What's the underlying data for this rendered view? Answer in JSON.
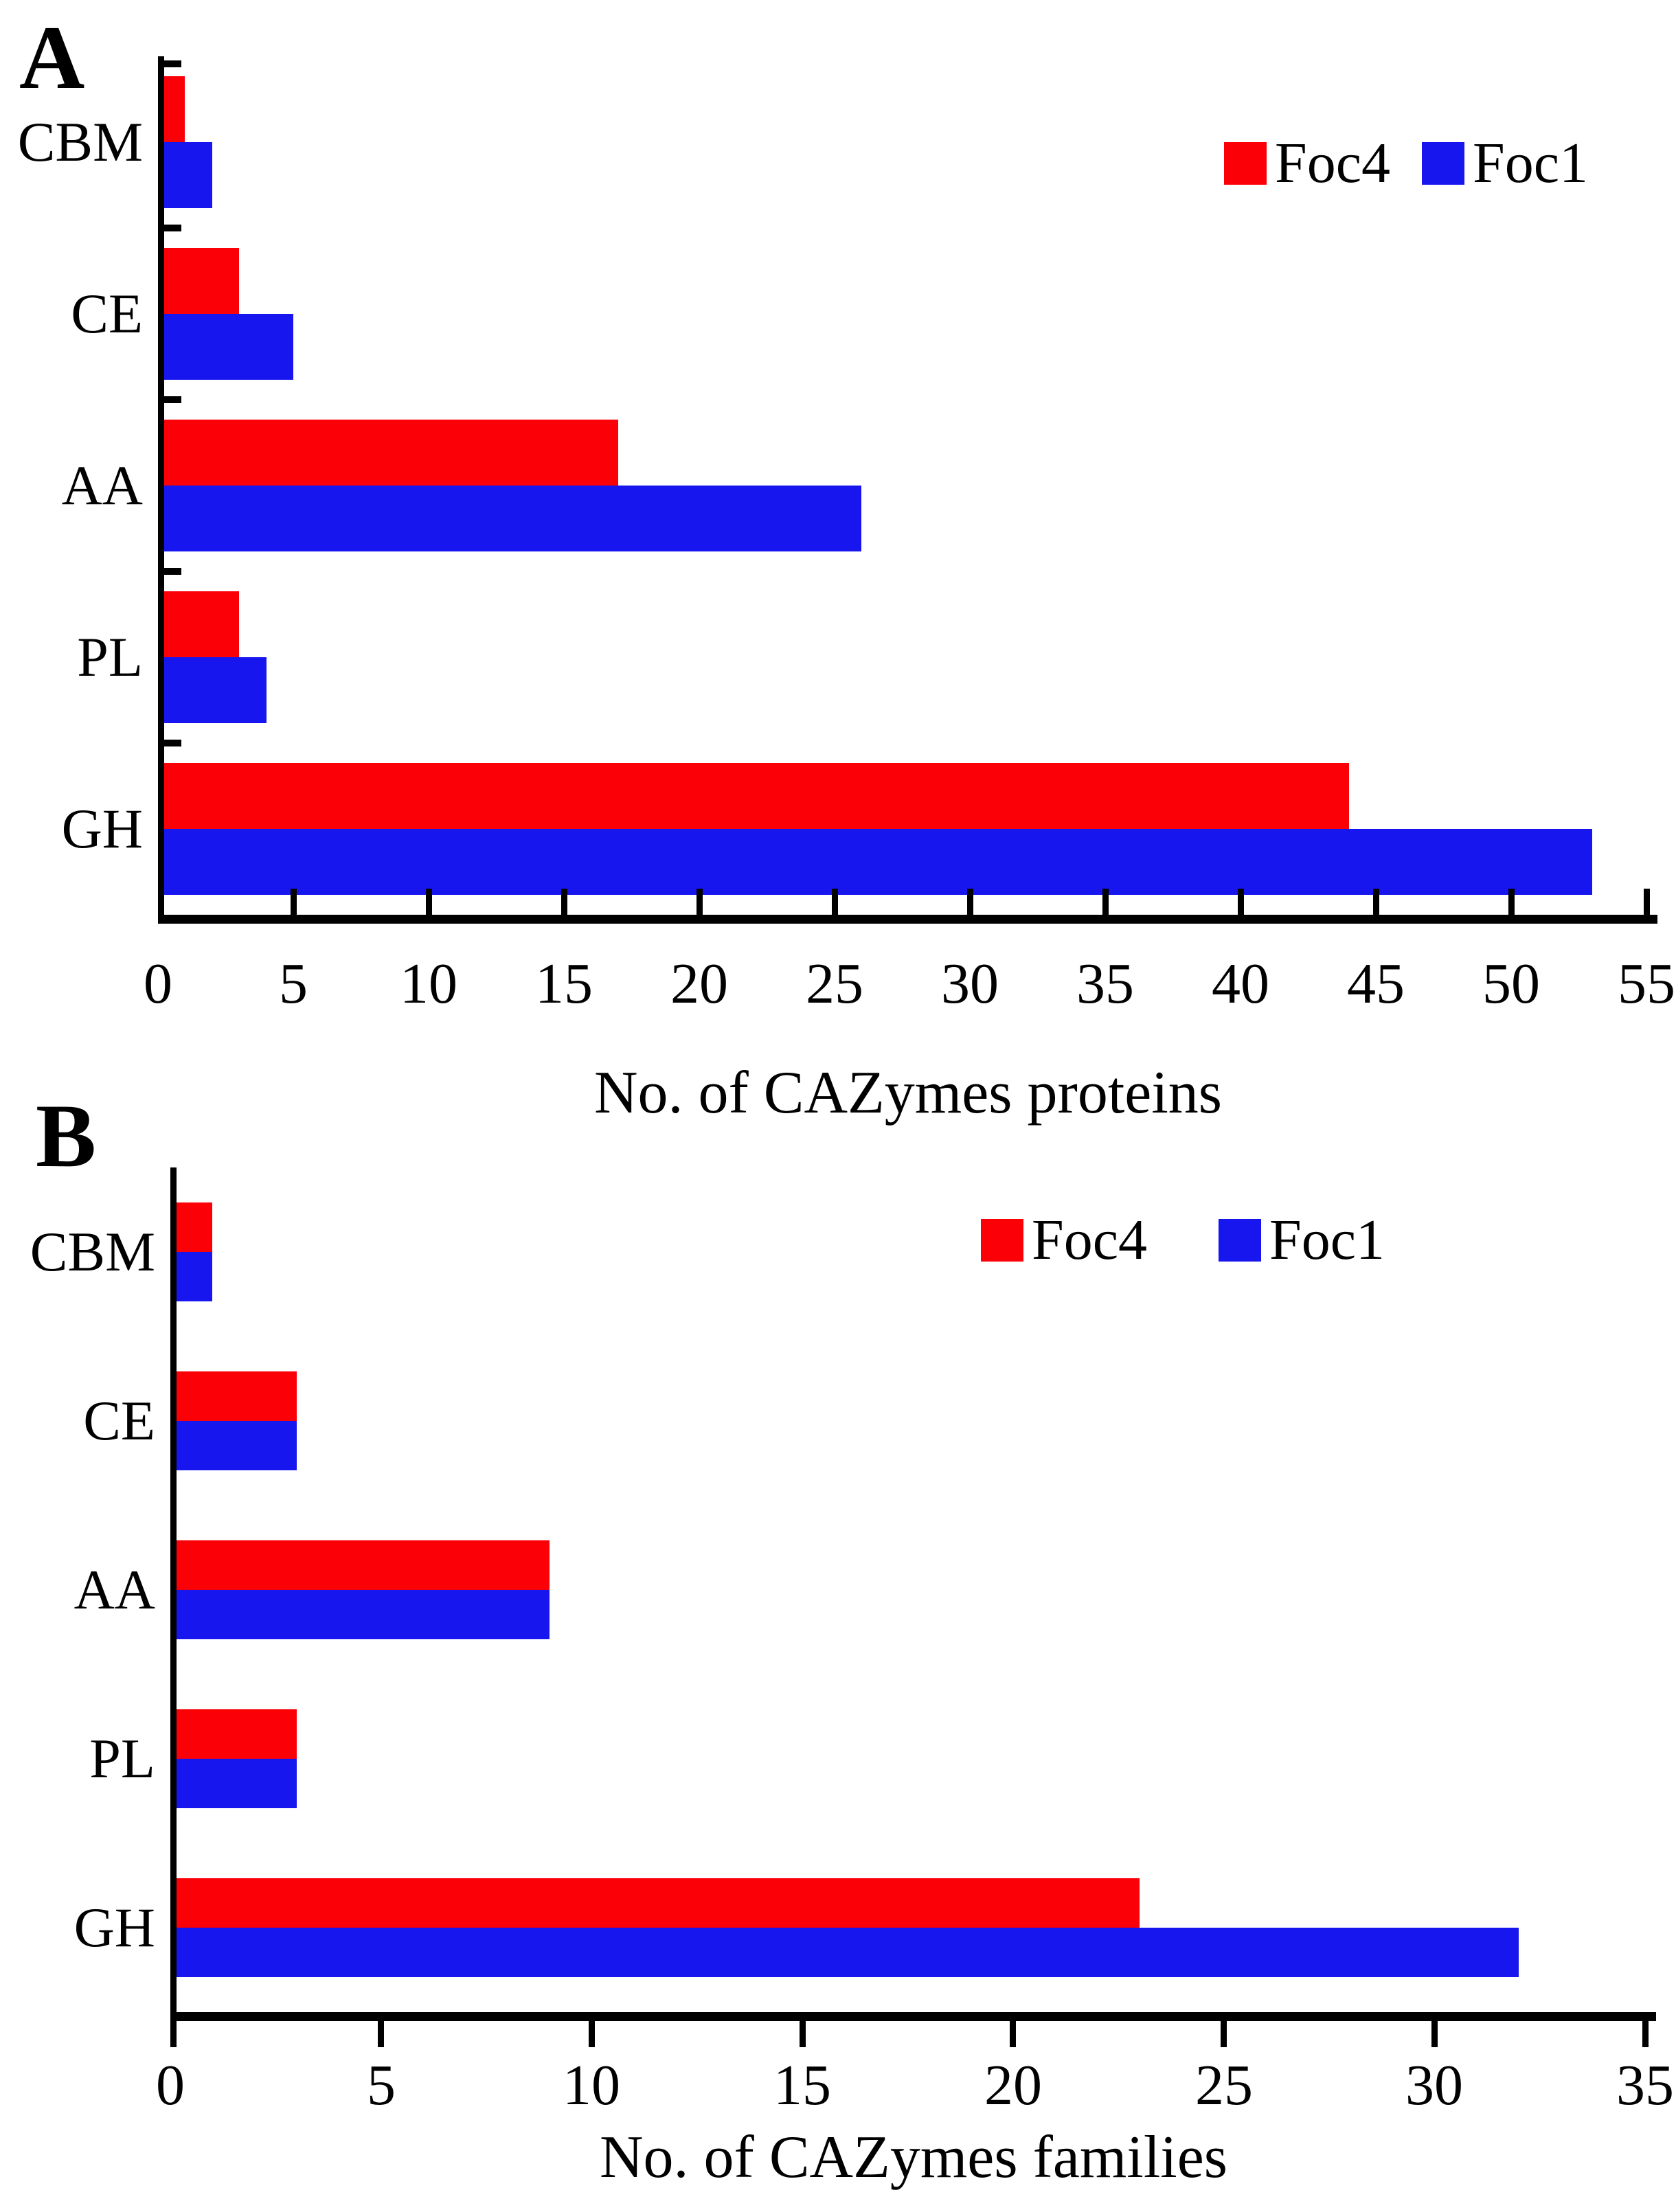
{
  "figure_labels": {
    "panel_a": "A",
    "panel_b": "B"
  },
  "chart_data": [
    {
      "type": "bar",
      "orientation": "horizontal",
      "panel_label": "A",
      "categories": [
        "CBM",
        "CE",
        "AA",
        "PL",
        "GH"
      ],
      "series": [
        {
          "name": "Foc4",
          "color": "#fb0007",
          "values": [
            1,
            3,
            17,
            3,
            44
          ]
        },
        {
          "name": "Foc1",
          "color": "#1716ee",
          "values": [
            2,
            5,
            26,
            4,
            53
          ]
        }
      ],
      "xlabel": "No. of CAZymes proteins",
      "xlim": [
        0,
        55
      ],
      "xticks": [
        0,
        5,
        10,
        15,
        20,
        25,
        30,
        35,
        40,
        45,
        50,
        55
      ],
      "bar_order_note": "Foc4 red bar on top, Foc1 blue bar below, per category",
      "legend_position": "top-right",
      "grid": false
    },
    {
      "type": "bar",
      "orientation": "horizontal",
      "panel_label": "B",
      "categories": [
        "CBM",
        "CE",
        "AA",
        "PL",
        "GH"
      ],
      "series": [
        {
          "name": "Foc4",
          "color": "#fb0007",
          "values": [
            1,
            3,
            9,
            3,
            23
          ]
        },
        {
          "name": "Foc1",
          "color": "#1716ee",
          "values": [
            1,
            3,
            9,
            3,
            32
          ]
        }
      ],
      "xlabel": "No. of CAZymes families",
      "xlim": [
        0,
        35
      ],
      "xticks": [
        0,
        5,
        10,
        15,
        20,
        25,
        30,
        35
      ],
      "bar_order_note": "Foc4 red bar on top, Foc1 blue bar below, per category",
      "legend_position": "top-center",
      "grid": false
    }
  ]
}
